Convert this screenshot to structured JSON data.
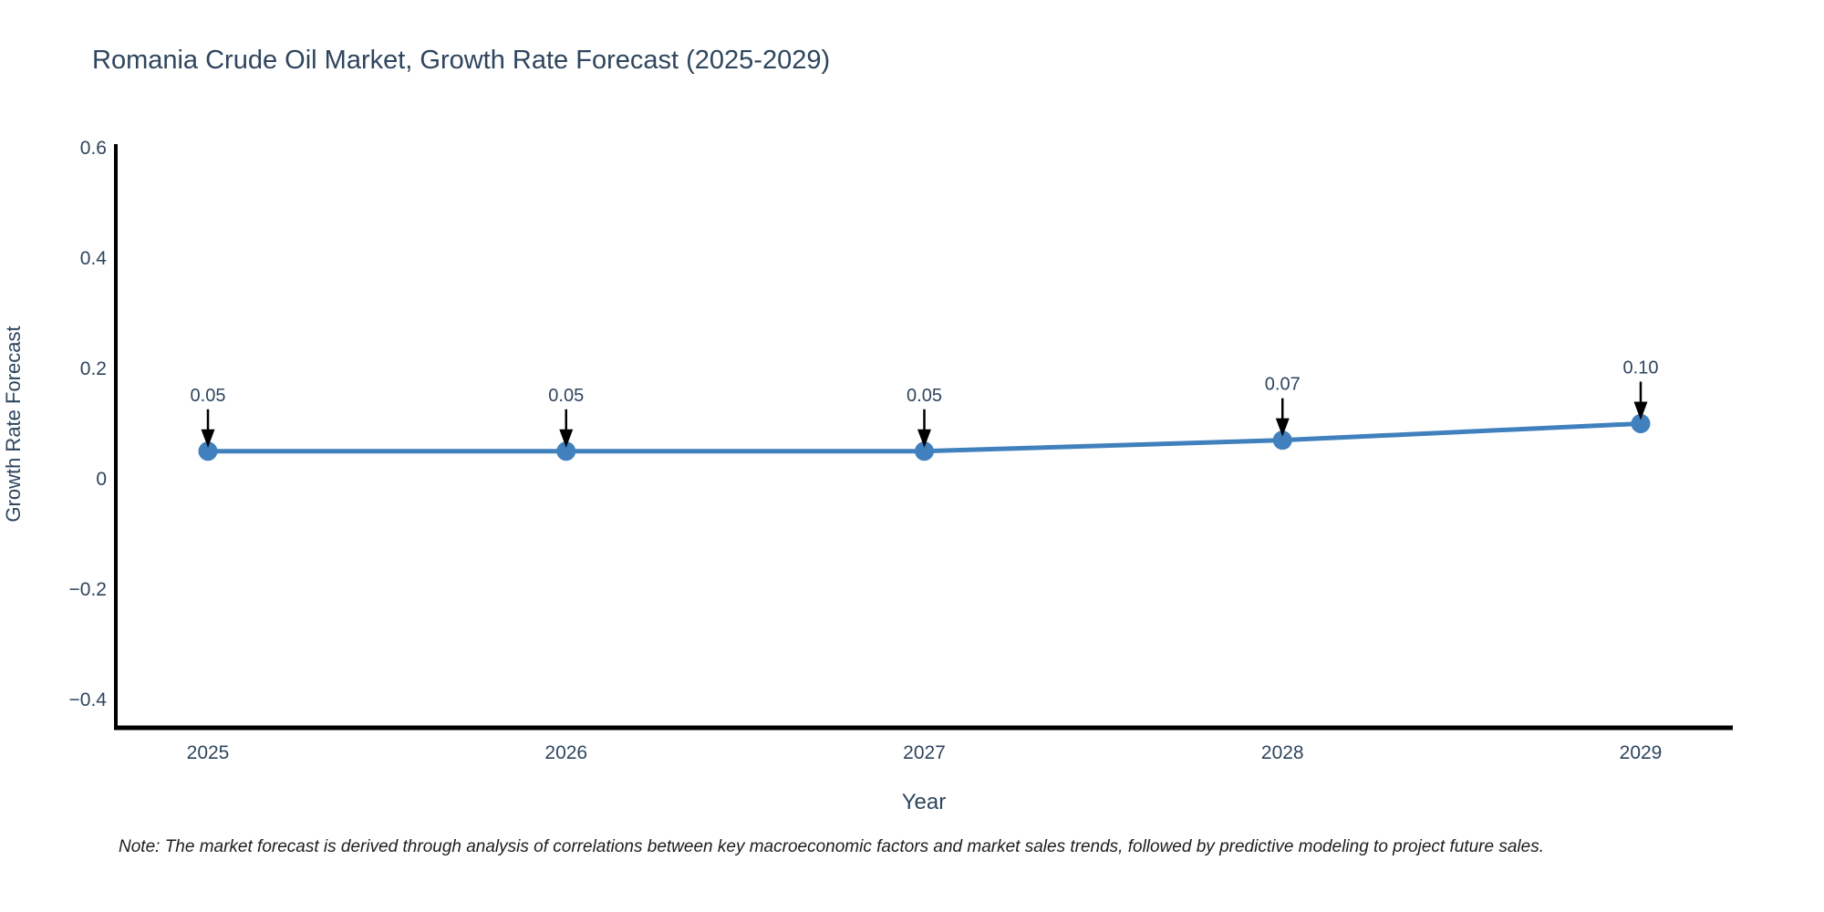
{
  "title": {
    "text": "Romania Crude Oil Market, Growth Rate Forecast (2025-2029)"
  },
  "note": {
    "text": "Note: The market forecast is derived through analysis of correlations between key macroeconomic factors and market sales trends, followed by predictive modeling to project future sales."
  },
  "chart_data": {
    "type": "line",
    "title": "Romania Crude Oil Market, Growth Rate Forecast (2025-2029)",
    "xlabel": "Year",
    "ylabel": "Growth Rate Forecast",
    "x": [
      2025,
      2026,
      2027,
      2028,
      2029
    ],
    "series": [
      {
        "name": "Growth Rate Forecast",
        "values": [
          0.05,
          0.05,
          0.05,
          0.07,
          0.1
        ]
      }
    ],
    "point_labels": [
      "0.05",
      "0.05",
      "0.05",
      "0.07",
      "0.10"
    ],
    "xtick_labels": [
      "2025",
      "2026",
      "2027",
      "2028",
      "2029"
    ],
    "ytick_values": [
      0.6,
      0.4,
      0.2,
      0,
      -0.2,
      -0.4
    ],
    "ytick_labels": [
      "0.6",
      "0.4",
      "0.2",
      "0",
      "−0.2",
      "−0.4"
    ],
    "ylim": [
      -0.45,
      0.6
    ],
    "grid": false,
    "legend_position": "none",
    "annotations_have_arrows": true,
    "colors": {
      "line": "#4080bd",
      "marker": "#4080bd",
      "arrow": "#000000",
      "spine": "#000000",
      "chart_text": "#2e455e",
      "note_text": "#1d1d1d",
      "background": "#ffffff"
    }
  }
}
